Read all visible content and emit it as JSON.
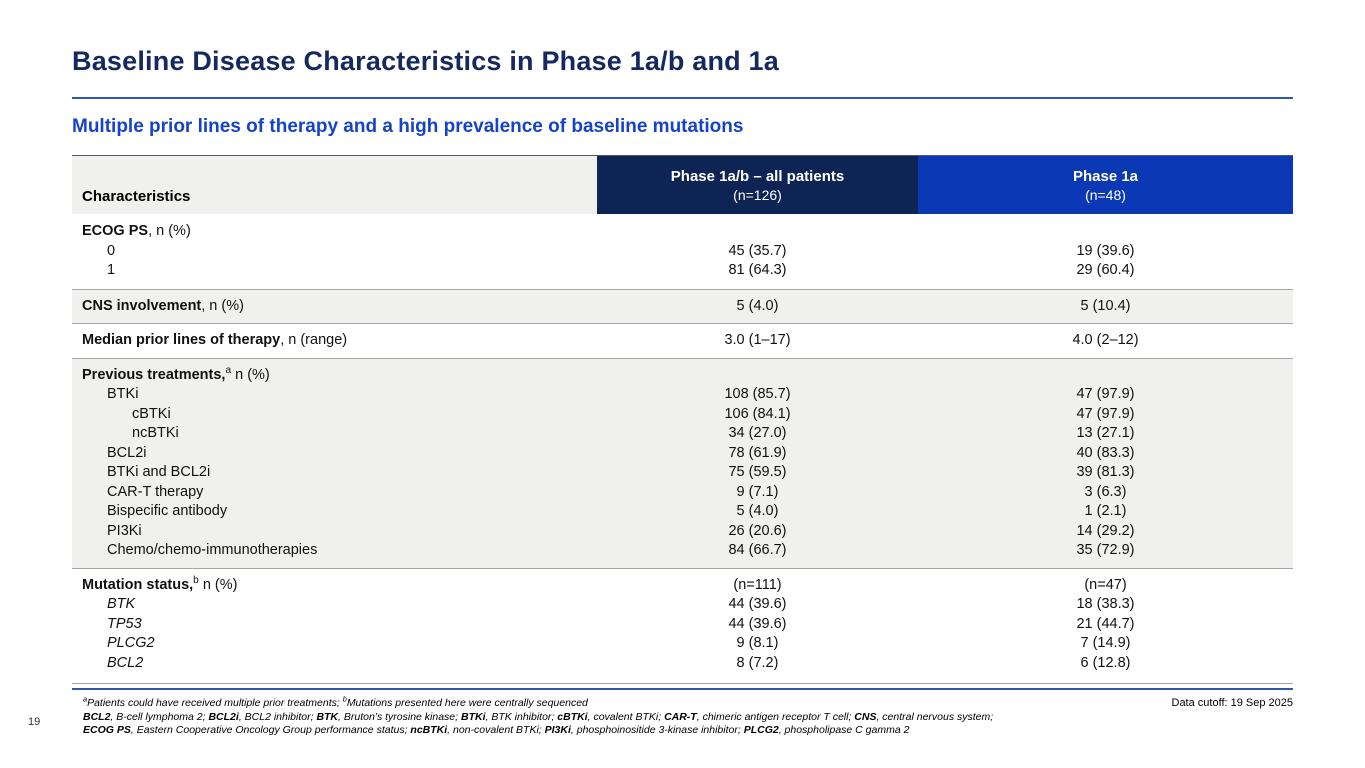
{
  "slide": {
    "title": "Baseline Disease Characteristics in Phase 1a/b and 1a",
    "subtitle": "Multiple prior lines of therapy and a high prevalence of baseline mutations",
    "page_number": "19",
    "data_cutoff": "Data cutoff: 19 Sep 2025"
  },
  "colors": {
    "title_navy": "#16295f",
    "subtitle_blue": "#1643c7",
    "rule_blue": "#2e5aa8",
    "header_navy": "#0e2455",
    "header_blue": "#0b38b4",
    "header_gray": "#f0f0ee",
    "shaded_row": "#f0f0ee"
  },
  "table": {
    "header": {
      "col1": "Characteristics",
      "col2_title": "Phase 1a/b – all patients",
      "col2_sub": "(n=126)",
      "col3_title": "Phase 1a",
      "col3_sub": "(n=48)"
    },
    "sections": [
      {
        "shaded": false,
        "rows": [
          {
            "parts": [
              {
                "t": "ECOG PS",
                "b": true
              },
              {
                "t": ", n (%)"
              }
            ],
            "indent": 0,
            "col2": "",
            "col3": ""
          },
          {
            "parts": [
              {
                "t": "0"
              }
            ],
            "indent": 1,
            "col2": "45 (35.7)",
            "col3": "19 (39.6)"
          },
          {
            "parts": [
              {
                "t": "1"
              }
            ],
            "indent": 1,
            "col2": "81 (64.3)",
            "col3": "29 (60.4)"
          }
        ]
      },
      {
        "shaded": true,
        "rows": [
          {
            "parts": [
              {
                "t": "CNS involvement",
                "b": true
              },
              {
                "t": ", n (%)"
              }
            ],
            "indent": 0,
            "col2": "5 (4.0)",
            "col3": "5 (10.4)"
          }
        ]
      },
      {
        "shaded": false,
        "rows": [
          {
            "parts": [
              {
                "t": "Median prior lines of therapy",
                "b": true
              },
              {
                "t": ", n (range)"
              }
            ],
            "indent": 0,
            "col2": "3.0 (1–17)",
            "col3": "4.0 (2–12)"
          }
        ]
      },
      {
        "shaded": true,
        "rows": [
          {
            "parts": [
              {
                "t": "Previous treatments,",
                "b": true
              },
              {
                "t": "a",
                "sup": true
              },
              {
                "t": " n (%)"
              }
            ],
            "indent": 0,
            "col2": "",
            "col3": ""
          },
          {
            "parts": [
              {
                "t": "BTKi"
              }
            ],
            "indent": 1,
            "col2": "108 (85.7)",
            "col3": "47 (97.9)"
          },
          {
            "parts": [
              {
                "t": "cBTKi"
              }
            ],
            "indent": 2,
            "col2": "106 (84.1)",
            "col3": "47 (97.9)"
          },
          {
            "parts": [
              {
                "t": "ncBTKi"
              }
            ],
            "indent": 2,
            "col2": "34 (27.0)",
            "col3": "13 (27.1)"
          },
          {
            "parts": [
              {
                "t": "BCL2i"
              }
            ],
            "indent": 1,
            "col2": "78 (61.9)",
            "col3": "40 (83.3)"
          },
          {
            "parts": [
              {
                "t": "BTKi and BCL2i"
              }
            ],
            "indent": 1,
            "col2": "75 (59.5)",
            "col3": "39 (81.3)"
          },
          {
            "parts": [
              {
                "t": "CAR-T therapy"
              }
            ],
            "indent": 1,
            "col2": "9 (7.1)",
            "col3": "3 (6.3)"
          },
          {
            "parts": [
              {
                "t": "Bispecific antibody"
              }
            ],
            "indent": 1,
            "col2": "5 (4.0)",
            "col3": "1 (2.1)"
          },
          {
            "parts": [
              {
                "t": "PI3Ki"
              }
            ],
            "indent": 1,
            "col2": "26 (20.6)",
            "col3": "14 (29.2)"
          },
          {
            "parts": [
              {
                "t": "Chemo/chemo-immunotherapies"
              }
            ],
            "indent": 1,
            "col2": "84 (66.7)",
            "col3": "35 (72.9)"
          }
        ]
      },
      {
        "shaded": false,
        "last": true,
        "rows": [
          {
            "parts": [
              {
                "t": "Mutation status,",
                "b": true
              },
              {
                "t": "b",
                "sup": true
              },
              {
                "t": " n (%)"
              }
            ],
            "indent": 0,
            "col2": "(n=111)",
            "col3": "(n=47)"
          },
          {
            "parts": [
              {
                "t": "BTK",
                "i": true
              }
            ],
            "indent": 1,
            "col2": "44 (39.6)",
            "col3": "18 (38.3)"
          },
          {
            "parts": [
              {
                "t": "TP53",
                "i": true
              }
            ],
            "indent": 1,
            "col2": "44 (39.6)",
            "col3": "21 (44.7)"
          },
          {
            "parts": [
              {
                "t": "PLCG2",
                "i": true
              }
            ],
            "indent": 1,
            "col2": "9 (8.1)",
            "col3": "7 (14.9)"
          },
          {
            "parts": [
              {
                "t": "BCL2",
                "i": true
              }
            ],
            "indent": 1,
            "col2": "8 (7.2)",
            "col3": "6 (12.8)"
          }
        ]
      }
    ]
  },
  "footnotes": {
    "line1": [
      {
        "t": "a",
        "sup": true
      },
      {
        "t": "Patients could have received multiple prior treatments; "
      },
      {
        "t": "b",
        "sup": true
      },
      {
        "t": "Mutations presented here were centrally sequenced"
      }
    ],
    "line2": [
      {
        "t": "BCL2",
        "b": true
      },
      {
        "t": ", B-cell lymphoma 2; "
      },
      {
        "t": "BCL2i",
        "b": true
      },
      {
        "t": ", BCL2 inhibitor; "
      },
      {
        "t": "BTK",
        "b": true
      },
      {
        "t": ", Bruton’s tyrosine kinase; "
      },
      {
        "t": "BTKi",
        "b": true
      },
      {
        "t": ", BTK inhibitor; "
      },
      {
        "t": "cBTKi",
        "b": true
      },
      {
        "t": ", covalent BTKi; "
      },
      {
        "t": "CAR-T",
        "b": true
      },
      {
        "t": ", chimeric antigen receptor T cell; "
      },
      {
        "t": "CNS",
        "b": true
      },
      {
        "t": ", central nervous system;"
      }
    ],
    "line3": [
      {
        "t": "ECOG PS",
        "b": true
      },
      {
        "t": ", Eastern Cooperative Oncology Group performance status; "
      },
      {
        "t": "ncBTKi",
        "b": true
      },
      {
        "t": ", non-covalent BTKi; "
      },
      {
        "t": "PI3Ki",
        "b": true
      },
      {
        "t": ", phosphoinositide 3-kinase inhibitor; "
      },
      {
        "t": "PLCG2",
        "b": true
      },
      {
        "t": ", phospholipase C gamma 2"
      }
    ]
  }
}
